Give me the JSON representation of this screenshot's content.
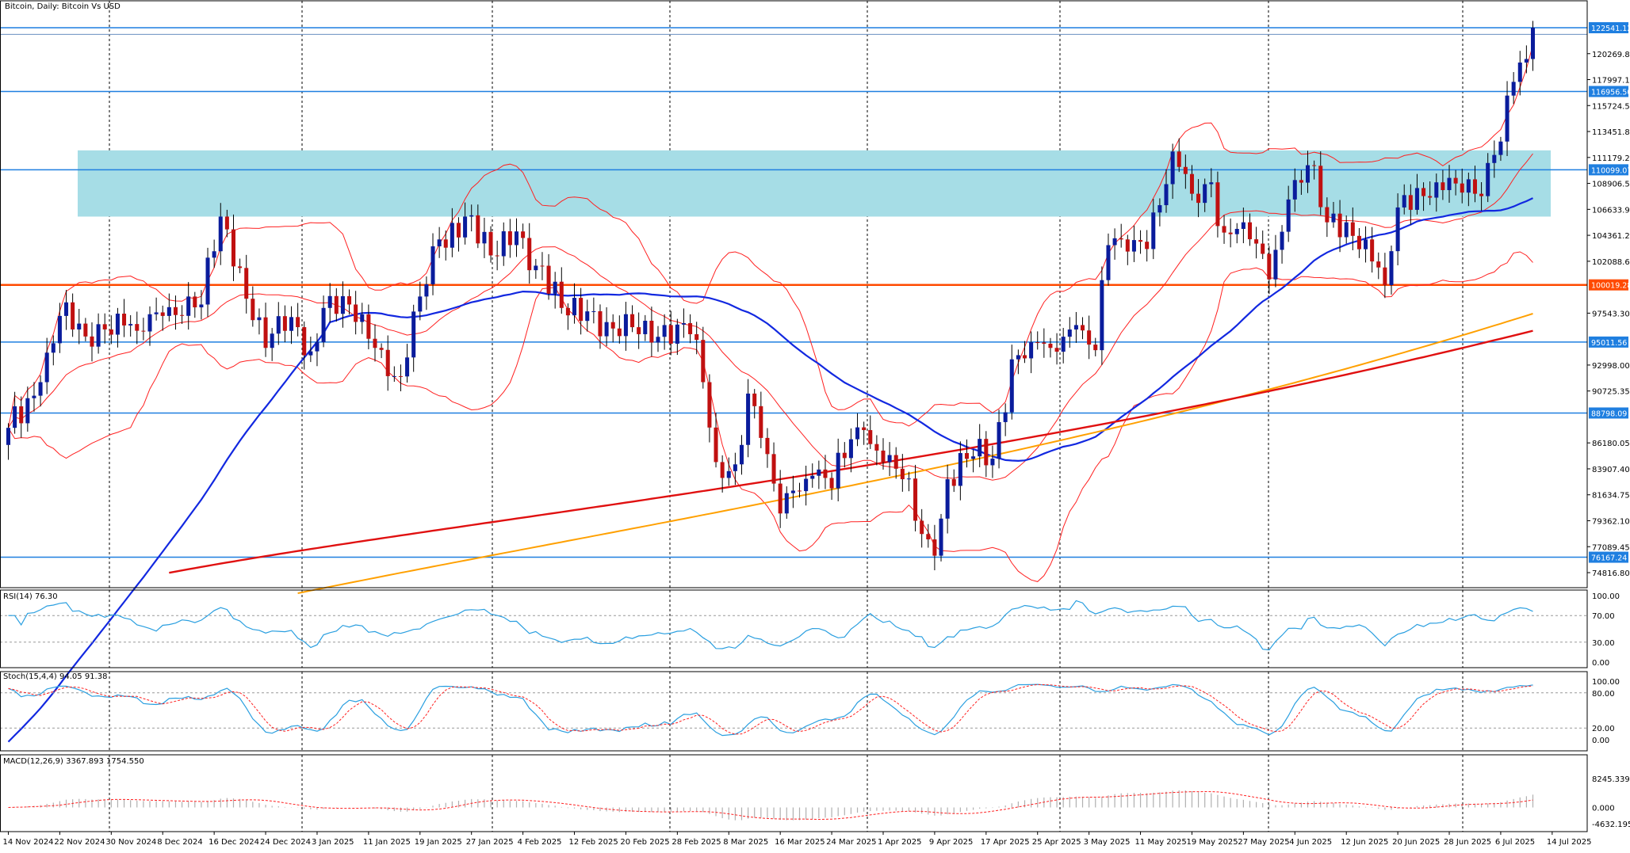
{
  "window": {
    "title": "Bitcoin, Daily:  Bitcoin Vs USD"
  },
  "colors": {
    "bull": "#0a1c9c",
    "bear": "#c01010",
    "bb": "#ff2020",
    "ma_blue": "#1228e0",
    "ma_orange": "#ffa000",
    "ma_red": "#e01010",
    "hline": "#1f7fe0",
    "hline_red": "#ff4a00",
    "zone": "#a6dde6",
    "osc": "#2a9fe0",
    "signal": "#ff2020",
    "hist": "#b0b0b0"
  },
  "main": {
    "ylim": [
      73500,
      124900
    ],
    "price_ticks": [
      "120269.80",
      "117997.15",
      "115724.50",
      "113451.85",
      "111179.20",
      "108906.55",
      "106633.90",
      "104361.25",
      "102088.60",
      "97543.30",
      "92998.00",
      "90725.35",
      "86180.05",
      "83907.40",
      "81634.75",
      "79362.10",
      "77089.45",
      "74816.80"
    ],
    "levels": [
      {
        "value": 122541.12,
        "label": "122541.12",
        "kind": "blue"
      },
      {
        "value": 121960.85,
        "label": "121960.85",
        "kind": "thin"
      },
      {
        "value": 116956.5,
        "label": "116956.50",
        "kind": "blue"
      },
      {
        "value": 110099.07,
        "label": "110099.07",
        "kind": "blue"
      },
      {
        "value": 100019.28,
        "label": "100019.28",
        "kind": "red"
      },
      {
        "value": 95011.56,
        "label": "95011.56",
        "kind": "blue"
      },
      {
        "value": 88798.09,
        "label": "88798.09",
        "kind": "blue"
      },
      {
        "value": 76167.24,
        "label": "76167.24",
        "kind": "blue"
      }
    ],
    "zone": {
      "from": 106000,
      "to": 111800
    }
  },
  "rsi": {
    "label": "RSI(14) 76.30",
    "ticks": [
      "100.00",
      "70.00",
      "30.00",
      "0.00"
    ]
  },
  "stoch": {
    "label": "Stoch(15,4,4) 94.05 91.38",
    "ticks": [
      "100.00",
      "80.00",
      "20.00",
      "0.00"
    ]
  },
  "macd": {
    "label": "MACD(12,26,9) 3367.893 1754.550",
    "ticks": [
      "8245.339",
      "0.000",
      "-4632.195"
    ]
  },
  "x_labels": [
    "14 Nov 2024",
    "22 Nov 2024",
    "30 Nov 2024",
    "8 Dec 2024",
    "16 Dec 2024",
    "24 Dec 2024",
    "3 Jan 2025",
    "11 Jan 2025",
    "19 Jan 2025",
    "27 Jan 2025",
    "4 Feb 2025",
    "12 Feb 2025",
    "20 Feb 2025",
    "28 Feb 2025",
    "8 Mar 2025",
    "16 Mar 2025",
    "24 Mar 2025",
    "1 Apr 2025",
    "9 Apr 2025",
    "17 Apr 2025",
    "25 Apr 2025",
    "3 May 2025",
    "11 May 2025",
    "19 May 2025",
    "27 May 2025",
    "4 Jun 2025",
    "12 Jun 2025",
    "20 Jun 2025",
    "28 Jun 2025",
    "6 Jul 2025",
    "14 Jul 2025"
  ],
  "chart_data": {
    "type": "candlestick",
    "title": "Bitcoin, Daily:  Bitcoin Vs USD",
    "x_start": "14 Nov 2024",
    "x_step_days": 1,
    "ohlc_anchor_closes": [
      [
        0,
        87500
      ],
      [
        5,
        91500
      ],
      [
        8,
        97300
      ],
      [
        12,
        95500
      ],
      [
        17,
        97500
      ],
      [
        20,
        96000
      ],
      [
        24,
        97300
      ],
      [
        28,
        99000
      ],
      [
        30,
        98300
      ],
      [
        33,
        106000
      ],
      [
        36,
        101500
      ],
      [
        40,
        94500
      ],
      [
        44,
        97200
      ],
      [
        47,
        94200
      ],
      [
        49,
        98000
      ],
      [
        53,
        98300
      ],
      [
        57,
        94500
      ],
      [
        61,
        92000
      ],
      [
        64,
        99000
      ],
      [
        67,
        104000
      ],
      [
        71,
        106000
      ],
      [
        75,
        102600
      ],
      [
        79,
        104700
      ],
      [
        82,
        101700
      ],
      [
        86,
        98000
      ],
      [
        90,
        97700
      ],
      [
        94,
        96200
      ],
      [
        98,
        95700
      ],
      [
        102,
        96500
      ],
      [
        106,
        95700
      ],
      [
        108,
        91500
      ],
      [
        110,
        84500
      ],
      [
        113,
        84300
      ],
      [
        115,
        90500
      ],
      [
        118,
        85200
      ],
      [
        120,
        80000
      ],
      [
        122,
        82000
      ],
      [
        125,
        83300
      ],
      [
        128,
        82200
      ],
      [
        131,
        86500
      ],
      [
        133,
        87300
      ],
      [
        136,
        84500
      ],
      [
        139,
        83000
      ],
      [
        142,
        78200
      ],
      [
        144,
        76300
      ],
      [
        146,
        83000
      ],
      [
        150,
        85000
      ],
      [
        153,
        84800
      ],
      [
        156,
        93500
      ],
      [
        159,
        95000
      ],
      [
        162,
        94500
      ],
      [
        166,
        96500
      ],
      [
        169,
        94300
      ],
      [
        171,
        103500
      ],
      [
        173,
        104000
      ],
      [
        176,
        103800
      ],
      [
        179,
        107000
      ],
      [
        181,
        111700
      ],
      [
        184,
        108000
      ],
      [
        187,
        109000
      ],
      [
        189,
        104600
      ],
      [
        192,
        105500
      ],
      [
        196,
        100500
      ],
      [
        199,
        107500
      ],
      [
        202,
        110500
      ],
      [
        205,
        105500
      ],
      [
        208,
        105500
      ],
      [
        211,
        104000
      ],
      [
        214,
        100000
      ],
      [
        216,
        106800
      ],
      [
        219,
        108500
      ],
      [
        222,
        109000
      ],
      [
        225,
        108900
      ],
      [
        228,
        108000
      ],
      [
        231,
        111400
      ],
      [
        234,
        117800
      ],
      [
        236,
        119800
      ],
      [
        237,
        122541
      ]
    ],
    "indicators": [
      "Bollinger Bands",
      "MA (blue)",
      "MA (orange)",
      "MA (red)"
    ],
    "ylim": [
      73500,
      124900
    ]
  }
}
